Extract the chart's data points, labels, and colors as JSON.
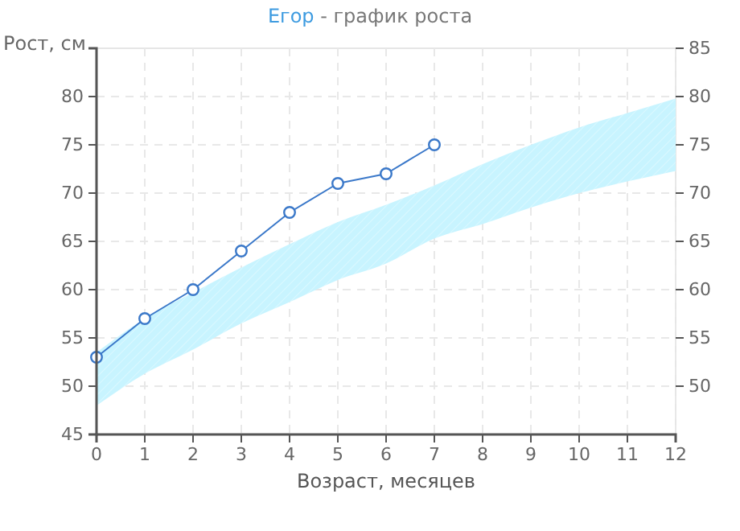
{
  "chart_data": {
    "type": "line",
    "title": "Егор - график роста",
    "xlabel": "Возраст, месяцев",
    "ylabel": "Рост, см",
    "xlim": [
      0,
      12
    ],
    "xticks": [
      0,
      1,
      2,
      3,
      4,
      5,
      6,
      7,
      8,
      9,
      10,
      11,
      12
    ],
    "ylim": [
      45,
      85
    ],
    "yticks": [
      45,
      50,
      55,
      60,
      65,
      70,
      75,
      80
    ],
    "y2lim": [
      45,
      85
    ],
    "y2ticks": [
      50,
      55,
      60,
      65,
      70,
      75,
      80,
      85
    ],
    "grid": true,
    "line_style": "solid",
    "series": [
      {
        "type": "line",
        "color": "#c8f4ff",
        "x": [
          0,
          1,
          2,
          3,
          4,
          5,
          6,
          7,
          8,
          9,
          10,
          11,
          12
        ],
        "values": [
          null,
          null,
          null,
          null,
          null,
          null,
          null,
          null,
          null,
          null,
          null,
          null,
          null
        ],
        "lower": [
          48,
          51.3,
          53.8,
          56.5,
          58.7,
          61,
          62.7,
          65.3,
          66.8,
          68.5,
          70,
          71.2,
          72.3
        ],
        "upper": [
          53.5,
          57,
          59.7,
          62.3,
          64.7,
          67,
          68.8,
          70.8,
          73,
          75,
          76.8,
          78.3,
          79.8
        ]
      },
      {
        "type": "line",
        "marker": "circle",
        "color": "#3a78c9",
        "x": [
          0,
          1,
          2,
          3,
          4,
          5,
          6,
          7
        ],
        "values": [
          53,
          57,
          60,
          64,
          68,
          71,
          72,
          75
        ]
      }
    ]
  }
}
